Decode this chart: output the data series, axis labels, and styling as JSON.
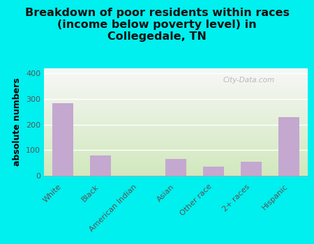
{
  "categories": [
    "White",
    "Black",
    "American Indian",
    "Asian",
    "Other race",
    "2+ races",
    "Hispanic"
  ],
  "values": [
    285,
    80,
    0,
    65,
    35,
    55,
    230
  ],
  "bar_color": "#c4a8d0",
  "background_color": "#00efef",
  "plot_bg_top": "#f8f8f8",
  "plot_bg_bottom": "#d4e8c0",
  "title_line1": "Breakdown of poor residents within races",
  "title_line2": "(income below poverty level) in",
  "title_line3": "Collegedale, TN",
  "ylabel": "absolute numbers",
  "ylim": [
    0,
    420
  ],
  "yticks": [
    0,
    100,
    200,
    300,
    400
  ],
  "watermark": "City-Data.com",
  "title_fontsize": 11.5,
  "bar_width": 0.55,
  "grid_color": "#e0e8d8",
  "tick_label_color": "#555555"
}
